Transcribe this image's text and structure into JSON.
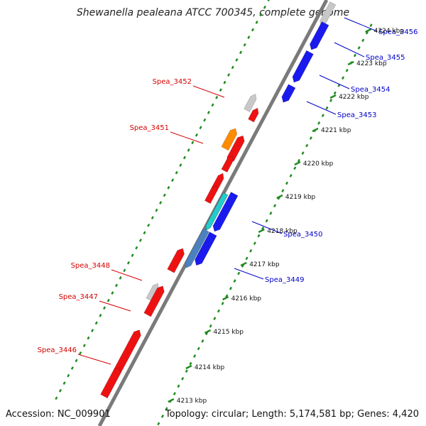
{
  "title": "Shewanella pealeana ATCC 700345, complete genome",
  "footer": {
    "accession": "Accession: NC_009901",
    "summary": "Topology: circular; Length: 5,174,581 bp; Genes: 4,420"
  },
  "colors": {
    "forward_label": "#d40000",
    "reverse_label": "#0000c8",
    "tick_green": "#228b22",
    "backbone": "#8a8a8a",
    "red": "#ee1111",
    "blue": "#1a1aee",
    "gray": "#c8c8c8",
    "orange": "#ff8c00",
    "steelblue": "#4a82c0",
    "cyan": "#22cccc"
  },
  "ticks": [
    "4224 kbp",
    "4223 kbp",
    "4222 kbp",
    "4221 kbp",
    "4220 kbp",
    "4219 kbp",
    "4218 kbp",
    "4217 kbp",
    "4216 kbp",
    "4215 kbp",
    "4214 kbp",
    "4213 kbp"
  ],
  "labels_forward": [
    {
      "text": "Spea_3452",
      "gene": 1
    },
    {
      "text": "Spea_3451",
      "gene": 3
    },
    {
      "text": "Spea_3448",
      "gene": 9
    },
    {
      "text": "Spea_3447",
      "gene": 10
    },
    {
      "text": "Spea_3446",
      "gene": 11
    }
  ],
  "labels_reverse": [
    {
      "text": "Spea_3456",
      "gene": 14
    },
    {
      "text": "Spea_3455",
      "gene": 15
    },
    {
      "text": "Spea_3454",
      "gene": 16
    },
    {
      "text": "Spea_3453",
      "gene": 17
    },
    {
      "text": "Spea_3450",
      "gene": 20
    },
    {
      "text": "Spea_3449",
      "gene": 22
    }
  ],
  "genes": [
    {
      "color": "gray",
      "strand": "fwd"
    },
    {
      "color": "red",
      "strand": "fwd"
    },
    {
      "color": "orange",
      "strand": "fwd"
    },
    {
      "color": "red",
      "strand": "fwd"
    },
    {
      "color": "red",
      "strand": "fwd"
    },
    {
      "color": "red",
      "strand": "fwd"
    },
    {
      "color": "red",
      "strand": "fwd"
    },
    {
      "color": "gray",
      "strand": "fwd"
    },
    {
      "color": "red",
      "strand": "fwd"
    },
    {
      "color": "red",
      "strand": "fwd"
    },
    {
      "color": "red",
      "strand": "fwd"
    },
    {
      "color": "red",
      "strand": "fwd"
    },
    {
      "color": "gray",
      "strand": "rev"
    },
    {
      "color": "blue",
      "strand": "rev"
    },
    {
      "color": "blue",
      "strand": "rev"
    },
    {
      "color": "blue",
      "strand": "rev"
    },
    {
      "color": "blue",
      "strand": "rev"
    },
    {
      "color": "blue",
      "strand": "rev"
    },
    {
      "color": "blue",
      "strand": "rev"
    },
    {
      "color": "cyan",
      "strand": "rev"
    },
    {
      "color": "blue",
      "strand": "rev"
    },
    {
      "color": "steelblue",
      "strand": "rev"
    }
  ]
}
